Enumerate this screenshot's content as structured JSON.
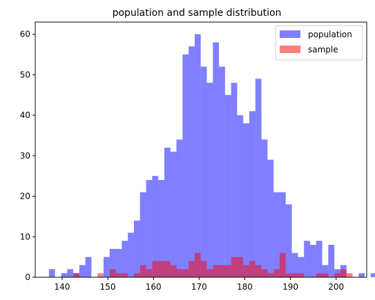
{
  "chart_data": {
    "type": "bar",
    "title": "population and sample distribution",
    "xlabel": "",
    "ylabel": "",
    "xlim": [
      134.1,
      206.7
    ],
    "ylim": [
      0,
      63
    ],
    "xticks": [
      140,
      150,
      160,
      170,
      180,
      190,
      200
    ],
    "yticks": [
      0,
      10,
      20,
      30,
      40,
      50,
      60
    ],
    "grid": false,
    "legend": "top-right",
    "bin_start": 137.1,
    "bin_width": 1.33,
    "series": [
      {
        "name": "population",
        "color": "#0000ff",
        "opacity": 0.5,
        "values": [
          2,
          0,
          1,
          2,
          1,
          3,
          5,
          0,
          0,
          5,
          7,
          7,
          9,
          11,
          14,
          21,
          24,
          25,
          24,
          32,
          31,
          34,
          55,
          57,
          60,
          52,
          48,
          58,
          52,
          45,
          48,
          40,
          38,
          41,
          49,
          34,
          29,
          21,
          21,
          18,
          6,
          5,
          9,
          8,
          9,
          3,
          8,
          2,
          3,
          0,
          0,
          1,
          0,
          1
        ]
      },
      {
        "name": "sample",
        "color": "#ff0000",
        "opacity": 0.5,
        "values": [
          0,
          0,
          0,
          0,
          1,
          0,
          0,
          0,
          1,
          0,
          2,
          1,
          1,
          0,
          1,
          3,
          2,
          4,
          4,
          4,
          3,
          2,
          2,
          4,
          6,
          4,
          2,
          3,
          3,
          3,
          5,
          5,
          3,
          4,
          3,
          2,
          1,
          2,
          6,
          1,
          1,
          1,
          0,
          0,
          1,
          1,
          0,
          1,
          2,
          1,
          0,
          0,
          0,
          0
        ]
      }
    ]
  }
}
